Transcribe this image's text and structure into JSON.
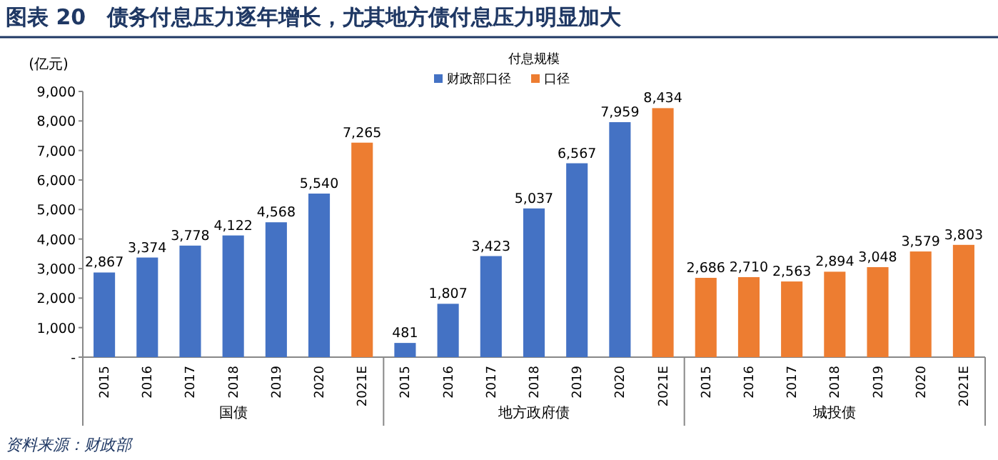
{
  "chart_data": {
    "type": "bar",
    "title": "图表 20　债务付息压力逐年增长，尤其地方债付息压力明显加大",
    "ylabel": "(亿元)",
    "legend_title": "付息规模",
    "legend": "top",
    "categories": [
      "2015",
      "2016",
      "2017",
      "2018",
      "2019",
      "2020",
      "2021E",
      "2015",
      "2016",
      "2017",
      "2018",
      "2019",
      "2020",
      "2021E",
      "2015",
      "2016",
      "2017",
      "2018",
      "2019",
      "2020",
      "2021E"
    ],
    "series": [
      {
        "name": "财政部口径",
        "color": "#4472c4",
        "values": [
          2867,
          3374,
          3778,
          4122,
          4568,
          5540,
          null,
          481,
          1807,
          3423,
          5037,
          6567,
          7959,
          null,
          null,
          null,
          null,
          null,
          null,
          null,
          null
        ],
        "value_labels": [
          "2,867",
          "3,374",
          "3,778",
          "4,122",
          "4,568",
          "5,540",
          null,
          "481",
          "1,807",
          "3,423",
          "5,037",
          "6,567",
          "7,959",
          null,
          null,
          null,
          null,
          null,
          null,
          null,
          null
        ]
      },
      {
        "name": "口径",
        "color": "#ed7d31",
        "values": [
          null,
          null,
          null,
          null,
          null,
          null,
          7265,
          null,
          null,
          null,
          null,
          null,
          null,
          8434,
          2686,
          2710,
          2563,
          2894,
          3048,
          3579,
          3803
        ],
        "value_labels": [
          null,
          null,
          null,
          null,
          null,
          null,
          "7,265",
          null,
          null,
          null,
          null,
          null,
          null,
          "8,434",
          "2,686",
          "2,710",
          "2,563",
          "2,894",
          "3,048",
          "3,579",
          "3,803"
        ]
      }
    ],
    "ylim": [
      0,
      9000
    ],
    "yticks": [
      {
        "value": 0,
        "label": "-"
      },
      {
        "value": 1000,
        "label": "1,000"
      },
      {
        "value": 2000,
        "label": "2,000"
      },
      {
        "value": 3000,
        "label": "3,000"
      },
      {
        "value": 4000,
        "label": "4,000"
      },
      {
        "value": 5000,
        "label": "5,000"
      },
      {
        "value": 6000,
        "label": "6,000"
      },
      {
        "value": 7000,
        "label": "7,000"
      },
      {
        "value": 8000,
        "label": "8,000"
      },
      {
        "value": 9000,
        "label": "9,000"
      }
    ],
    "annotations": [
      "国债",
      "地方政府债",
      "城投债",
      "资料来源：财政部"
    ]
  }
}
